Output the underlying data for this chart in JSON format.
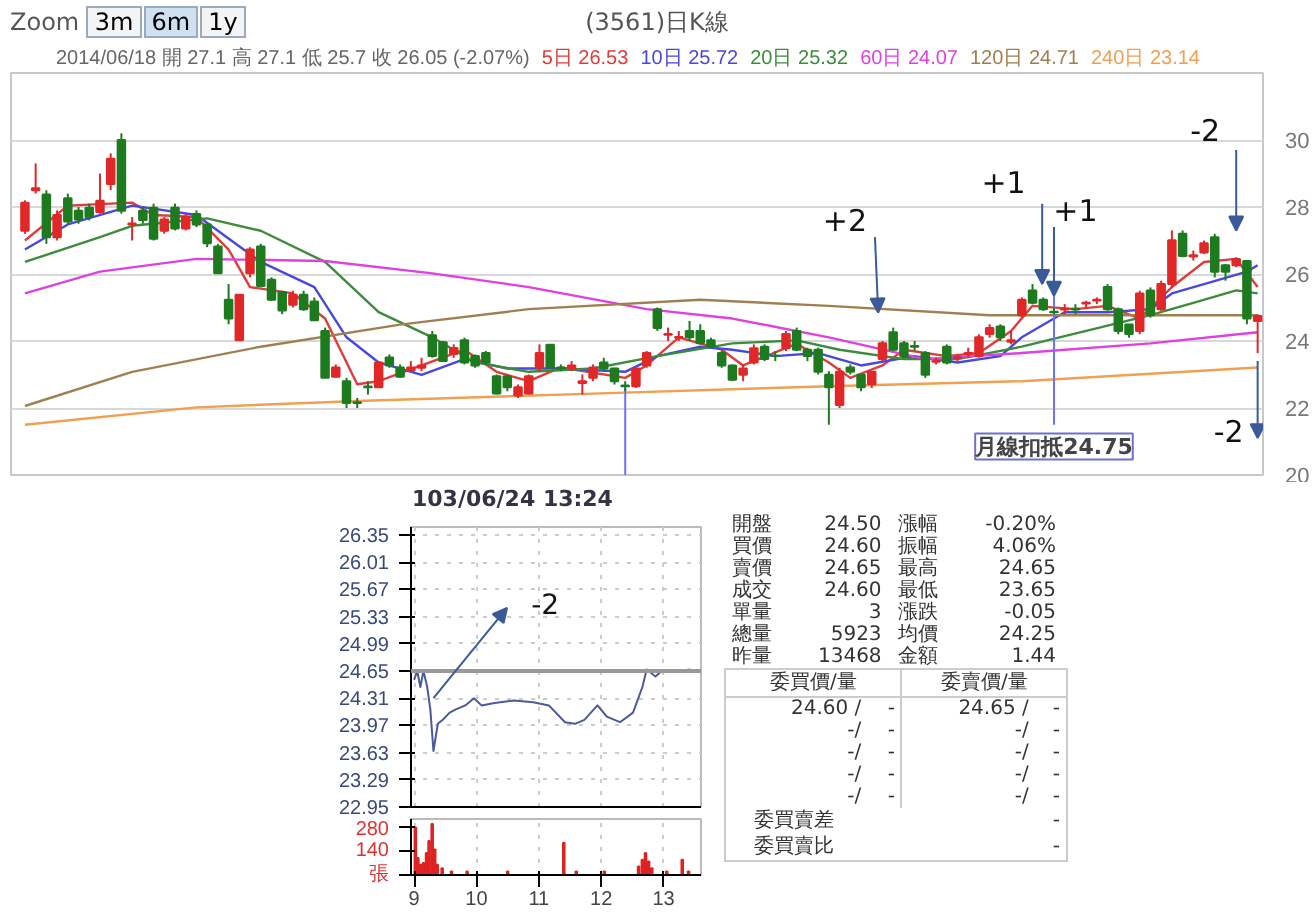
{
  "chart_data": [
    {
      "type": "candlestick",
      "title": "(3561)日K線",
      "subtitle": "2014/06/18 開 27.1 高 27.1 低 25.7 收 26.05 (-2.07%)",
      "annotations": [
        "Zoom",
        "3m",
        "6m",
        "1y",
        "+2",
        "+1",
        "+1",
        "-2",
        "-2",
        "月線扣抵24.75"
      ],
      "categories": [
        null,
        null,
        null,
        null,
        null,
        null,
        null,
        null,
        null,
        null,
        null,
        null,
        null,
        null,
        null,
        null,
        null,
        null,
        null,
        null,
        null,
        null,
        null,
        null,
        null,
        null,
        null,
        null,
        null,
        null,
        null,
        null,
        null,
        null,
        null,
        null,
        null,
        null,
        null,
        null,
        null,
        null,
        null,
        null,
        null,
        null,
        null,
        null,
        null,
        null,
        null,
        null,
        null,
        null,
        null,
        null,
        null,
        null,
        null,
        null,
        null,
        null,
        null,
        null,
        null,
        null,
        null,
        null,
        null,
        null,
        null,
        null,
        null,
        null,
        null,
        null,
        null,
        null,
        null,
        null,
        null,
        null,
        null,
        null,
        null,
        null,
        null,
        null,
        null,
        null,
        null,
        null,
        null,
        null,
        null,
        null,
        null,
        null,
        null,
        null,
        null,
        null,
        null,
        null,
        null,
        null,
        null,
        null,
        null,
        null,
        null,
        null,
        null,
        null,
        null,
        null
      ],
      "ohlc": [
        [
          27.29,
          28.2,
          27.2,
          28.13
        ],
        [
          28.5,
          29.3,
          28.4,
          28.56
        ],
        [
          28.37,
          28.5,
          26.9,
          27.1
        ],
        [
          27.1,
          27.9,
          27.0,
          27.76
        ],
        [
          28.26,
          28.4,
          27.5,
          27.57
        ],
        [
          27.89,
          28.0,
          27.5,
          27.63
        ],
        [
          27.98,
          28.1,
          27.6,
          27.7
        ],
        [
          27.85,
          29.0,
          27.8,
          28.19
        ],
        [
          28.69,
          29.6,
          28.5,
          29.44
        ],
        [
          30.0,
          30.2,
          27.8,
          27.89
        ],
        [
          27.48,
          27.7,
          27.0,
          27.51
        ],
        [
          27.89,
          28.0,
          27.5,
          27.61
        ],
        [
          27.98,
          28.1,
          27.0,
          27.05
        ],
        [
          27.29,
          27.7,
          27.2,
          27.63
        ],
        [
          27.98,
          28.1,
          27.3,
          27.36
        ],
        [
          27.36,
          27.8,
          27.3,
          27.7
        ],
        [
          27.79,
          27.9,
          27.4,
          27.48
        ],
        [
          27.48,
          27.5,
          26.8,
          26.92
        ],
        [
          26.82,
          26.9,
          26.0,
          26.02
        ],
        [
          25.23,
          25.7,
          24.5,
          24.67
        ],
        [
          24.02,
          25.4,
          24.0,
          25.38
        ],
        [
          26.02,
          26.8,
          25.9,
          26.73
        ],
        [
          26.82,
          26.9,
          25.6,
          25.64
        ],
        [
          25.83,
          25.9,
          25.2,
          25.23
        ],
        [
          25.46,
          25.5,
          24.8,
          24.91
        ],
        [
          25.08,
          25.5,
          25.0,
          25.38
        ],
        [
          25.38,
          25.5,
          24.9,
          24.95
        ],
        [
          25.18,
          25.3,
          24.6,
          24.62
        ],
        [
          24.3,
          24.4,
          22.9,
          22.9
        ],
        [
          22.93,
          23.3,
          22.9,
          23.21
        ],
        [
          22.8,
          22.9,
          22.0,
          22.15
        ],
        [
          22.17,
          22.3,
          22.0,
          22.15
        ],
        [
          22.64,
          22.8,
          22.4,
          22.62
        ],
        [
          22.62,
          23.4,
          22.6,
          23.36
        ],
        [
          23.51,
          23.6,
          23.2,
          23.27
        ],
        [
          23.21,
          23.3,
          22.9,
          22.93
        ],
        [
          23.12,
          23.4,
          23.1,
          23.21
        ],
        [
          23.2,
          23.5,
          23.1,
          23.27
        ],
        [
          24.17,
          24.3,
          23.5,
          23.55
        ],
        [
          23.96,
          24.0,
          23.4,
          23.4
        ],
        [
          23.61,
          23.9,
          23.5,
          23.79
        ],
        [
          24.02,
          24.1,
          23.3,
          23.36
        ],
        [
          23.55,
          23.6,
          23.2,
          23.27
        ],
        [
          23.64,
          23.7,
          23.3,
          23.36
        ],
        [
          22.95,
          23.0,
          22.4,
          22.43
        ],
        [
          22.95,
          23.0,
          22.5,
          22.62
        ],
        [
          22.37,
          22.7,
          22.3,
          22.62
        ],
        [
          22.43,
          23.0,
          22.4,
          22.95
        ],
        [
          23.21,
          23.9,
          23.1,
          23.64
        ],
        [
          23.89,
          23.9,
          23.2,
          23.21
        ],
        [
          23.21,
          23.3,
          23.1,
          23.18
        ],
        [
          23.18,
          23.4,
          23.1,
          23.27
        ],
        [
          22.75,
          23.0,
          22.4,
          22.8
        ],
        [
          22.9,
          23.3,
          22.8,
          23.21
        ],
        [
          23.36,
          23.5,
          23.1,
          23.18
        ],
        [
          23.18,
          23.2,
          22.7,
          22.8
        ],
        [
          22.67,
          22.8,
          22.5,
          22.65
        ],
        [
          22.65,
          23.2,
          22.6,
          23.18
        ],
        [
          23.27,
          23.7,
          23.2,
          23.64
        ],
        [
          24.95,
          25.0,
          24.3,
          24.39
        ],
        [
          24.19,
          24.4,
          24.0,
          24.21
        ],
        [
          24.1,
          24.3,
          24.0,
          24.12
        ],
        [
          24.3,
          24.6,
          24.0,
          24.11
        ],
        [
          24.3,
          24.5,
          23.9,
          23.93
        ],
        [
          24.02,
          24.1,
          23.8,
          23.83
        ],
        [
          23.64,
          23.7,
          23.2,
          23.27
        ],
        [
          23.27,
          23.3,
          22.8,
          22.84
        ],
        [
          22.99,
          23.3,
          22.8,
          23.18
        ],
        [
          23.36,
          23.9,
          23.3,
          23.78
        ],
        [
          23.83,
          23.9,
          23.4,
          23.46
        ],
        [
          23.56,
          23.7,
          23.4,
          23.55
        ],
        [
          23.78,
          24.3,
          23.7,
          24.21
        ],
        [
          24.3,
          24.4,
          23.7,
          23.74
        ],
        [
          23.74,
          23.8,
          23.4,
          23.55
        ],
        [
          23.74,
          23.8,
          23.0,
          23.08
        ],
        [
          22.99,
          23.1,
          21.5,
          22.62
        ],
        [
          22.09,
          23.2,
          22.0,
          23.08
        ],
        [
          23.21,
          23.3,
          23.0,
          23.08
        ],
        [
          22.99,
          23.0,
          22.5,
          22.62
        ],
        [
          22.71,
          23.1,
          22.6,
          23.08
        ],
        [
          23.46,
          24.0,
          23.4,
          23.93
        ],
        [
          24.26,
          24.4,
          23.7,
          23.74
        ],
        [
          23.93,
          24.0,
          23.5,
          23.55
        ],
        [
          23.85,
          24.0,
          23.7,
          23.83
        ],
        [
          23.64,
          23.7,
          22.9,
          22.99
        ],
        [
          23.38,
          23.5,
          23.3,
          23.4
        ],
        [
          23.83,
          23.9,
          23.3,
          23.36
        ],
        [
          23.5,
          23.6,
          23.4,
          23.51
        ],
        [
          23.62,
          23.8,
          23.5,
          23.64
        ],
        [
          23.55,
          24.2,
          23.5,
          24.11
        ],
        [
          24.21,
          24.5,
          24.1,
          24.39
        ],
        [
          24.43,
          24.5,
          24.0,
          24.11
        ],
        [
          23.98,
          24.3,
          23.9,
          24.02
        ],
        [
          24.77,
          25.3,
          24.7,
          25.23
        ],
        [
          25.51,
          25.7,
          25.1,
          25.14
        ],
        [
          25.23,
          25.3,
          24.9,
          24.95
        ],
        [
          24.87,
          25.0,
          24.8,
          24.86
        ],
        [
          24.94,
          25.1,
          24.8,
          24.96
        ],
        [
          24.96,
          25.1,
          24.8,
          24.94
        ],
        [
          25.12,
          25.2,
          25.0,
          25.14
        ],
        [
          25.21,
          25.3,
          25.1,
          25.23
        ],
        [
          25.61,
          25.7,
          24.9,
          24.95
        ],
        [
          24.95,
          25.0,
          24.2,
          24.3
        ],
        [
          24.49,
          24.5,
          24.1,
          24.21
        ],
        [
          24.3,
          25.5,
          24.2,
          25.42
        ],
        [
          25.51,
          25.6,
          24.7,
          24.77
        ],
        [
          24.95,
          25.8,
          24.9,
          25.7
        ],
        [
          25.7,
          27.3,
          25.6,
          27.01
        ],
        [
          27.2,
          27.3,
          26.5,
          26.54
        ],
        [
          26.52,
          26.7,
          26.4,
          26.56
        ],
        [
          26.64,
          27.0,
          26.6,
          26.92
        ],
        [
          27.1,
          27.2,
          25.9,
          26.07
        ],
        [
          26.26,
          26.3,
          25.8,
          26.07
        ],
        [
          26.26,
          26.5,
          26.2,
          26.45
        ],
        [
          26.39,
          26.4,
          24.5,
          24.67
        ],
        [
          24.6,
          24.8,
          23.64,
          24.75
        ]
      ],
      "series": [
        {
          "type": "line",
          "name": "5日 26.53",
          "color": "#e03c3c",
          "values": [
            27.0,
            null,
            null,
            null,
            28.04,
            null,
            null,
            null,
            null,
            null,
            28.13,
            null,
            27.76,
            null,
            null,
            null,
            27.7,
            null,
            null,
            26.73,
            null,
            25.61,
            null,
            null,
            null,
            25.42,
            null,
            null,
            24.67,
            null,
            null,
            22.71,
            null,
            22.8,
            null,
            null,
            null,
            23.27,
            null,
            null,
            null,
            23.74,
            null,
            null,
            23.08,
            null,
            null,
            22.8,
            null,
            null,
            23.21,
            null,
            null,
            null,
            null,
            null,
            22.9,
            null,
            23.27,
            null,
            null,
            24.11,
            null,
            null,
            null,
            23.74,
            null,
            23.27,
            null,
            null,
            null,
            null,
            23.92,
            null,
            null,
            23.36,
            null,
            22.9,
            null,
            null,
            23.27,
            null,
            23.74,
            null,
            null,
            null,
            23.55,
            null,
            null,
            23.64,
            null,
            null,
            24.3,
            null,
            25.05,
            null,
            null,
            null,
            24.95,
            null,
            null,
            25.05,
            null,
            null,
            24.67,
            null,
            null,
            25.61,
            null,
            null,
            26.36,
            null,
            null,
            26.45,
            null,
            25.61
          ]
        },
        {
          "type": "line",
          "name": "10日 25.72",
          "color": "#4848e0",
          "values": [
            26.73,
            null,
            null,
            null,
            27.48,
            null,
            null,
            null,
            null,
            null,
            28.04,
            null,
            null,
            null,
            null,
            null,
            27.76,
            null,
            27.29,
            null,
            null,
            null,
            26.36,
            null,
            null,
            null,
            null,
            25.61,
            null,
            null,
            24.11,
            null,
            null,
            23.36,
            null,
            null,
            null,
            22.99,
            null,
            null,
            null,
            23.46,
            null,
            null,
            null,
            23.18,
            null,
            null,
            null,
            null,
            23.18,
            null,
            null,
            null,
            null,
            null,
            23.08,
            null,
            null,
            23.55,
            null,
            null,
            null,
            23.83,
            null,
            null,
            23.74,
            null,
            null,
            null,
            23.55,
            null,
            null,
            null,
            23.64,
            null,
            null,
            null,
            23.27,
            null,
            null,
            null,
            null,
            23.55,
            null,
            null,
            null,
            23.36,
            null,
            null,
            null,
            23.55,
            null,
            24.11,
            null,
            null,
            null,
            24.86,
            null,
            null,
            null,
            24.86,
            null,
            null,
            null,
            24.95,
            null,
            25.42,
            null,
            null,
            25.7,
            null,
            null,
            null,
            26.07,
            26.26
          ]
        },
        {
          "type": "line",
          "name": "20日 25.32",
          "color": "#3c8c3c",
          "values": [
            26.36,
            null,
            null,
            null,
            null,
            null,
            null,
            27.1,
            null,
            null,
            27.44,
            null,
            null,
            null,
            null,
            null,
            null,
            27.66,
            null,
            null,
            null,
            null,
            27.29,
            null,
            null,
            null,
            null,
            null,
            26.36,
            null,
            null,
            null,
            null,
            24.86,
            null,
            null,
            null,
            null,
            24.11,
            null,
            null,
            null,
            23.36,
            null,
            null,
            null,
            null,
            23.08,
            null,
            null,
            null,
            null,
            null,
            23.18,
            null,
            null,
            null,
            null,
            null,
            23.55,
            null,
            null,
            null,
            null,
            null,
            null,
            23.93,
            null,
            null,
            null,
            null,
            null,
            24.02,
            null,
            null,
            null,
            23.74,
            null,
            null,
            null,
            null,
            null,
            23.46,
            null,
            null,
            null,
            null,
            23.46,
            null,
            null,
            null,
            null,
            null,
            23.83,
            null,
            null,
            null,
            null,
            null,
            24.3,
            null,
            null,
            null,
            null,
            null,
            24.77,
            null,
            null,
            null,
            25.14,
            null,
            null,
            null,
            25.51,
            null,
            25.42
          ]
        },
        {
          "type": "line",
          "name": "60日 24.07",
          "color": "#e040e0",
          "values": [
            25.42,
            null,
            null,
            null,
            null,
            null,
            null,
            26.07,
            null,
            null,
            null,
            null,
            null,
            null,
            null,
            null,
            26.45,
            null,
            null,
            null,
            null,
            null,
            null,
            null,
            null,
            null,
            null,
            null,
            26.39,
            null,
            null,
            null,
            null,
            null,
            null,
            null,
            null,
            null,
            26.02,
            null,
            null,
            null,
            null,
            null,
            null,
            null,
            null,
            25.61,
            null,
            null,
            null,
            null,
            null,
            null,
            null,
            null,
            null,
            null,
            24.95,
            null,
            null,
            null,
            null,
            null,
            null,
            null,
            24.67,
            null,
            null,
            null,
            null,
            null,
            null,
            null,
            null,
            24.11,
            null,
            null,
            null,
            null,
            null,
            null,
            null,
            null,
            23.46,
            null,
            null,
            null,
            null,
            null,
            null,
            null,
            null,
            23.64,
            null,
            null,
            null,
            null,
            null,
            null,
            null,
            null,
            null,
            null,
            null,
            23.93,
            null,
            null,
            null,
            null,
            null,
            null,
            null,
            null,
            null,
            24.26
          ]
        },
        {
          "type": "line",
          "name": "120日 24.71",
          "color": "#a08050",
          "values": [
            22.06,
            null,
            null,
            null,
            null,
            null,
            null,
            null,
            null,
            null,
            23.08,
            null,
            null,
            null,
            null,
            null,
            null,
            null,
            null,
            null,
            null,
            null,
            23.83,
            null,
            null,
            null,
            null,
            null,
            null,
            null,
            null,
            null,
            null,
            null,
            null,
            24.49,
            null,
            null,
            null,
            null,
            null,
            null,
            null,
            null,
            null,
            null,
            null,
            24.95,
            null,
            null,
            null,
            null,
            null,
            null,
            null,
            null,
            null,
            null,
            null,
            null,
            null,
            null,
            null,
            25.23,
            null,
            null,
            null,
            null,
            null,
            null,
            null,
            null,
            null,
            null,
            null,
            25.05,
            null,
            null,
            null,
            null,
            null,
            null,
            null,
            null,
            null,
            null,
            null,
            null,
            null,
            null,
            24.77,
            null,
            null,
            null,
            null,
            null,
            null,
            null,
            null,
            null,
            null,
            null,
            null,
            null,
            null,
            24.77,
            null,
            null,
            null,
            null,
            null,
            null,
            null,
            null,
            null,
            24.77
          ]
        },
        {
          "type": "line",
          "name": "240日 23.14",
          "color": "#f0a050",
          "values": [
            21.5,
            null,
            null,
            null,
            null,
            null,
            null,
            null,
            null,
            null,
            null,
            null,
            null,
            null,
            null,
            null,
            22.02,
            null,
            null,
            null,
            null,
            null,
            null,
            null,
            null,
            null,
            null,
            null,
            null,
            null,
            null,
            22.21,
            null,
            null,
            null,
            null,
            null,
            null,
            null,
            null,
            null,
            null,
            null,
            null,
            null,
            null,
            null,
            null,
            null,
            null,
            null,
            null,
            null,
            22.43,
            null,
            null,
            null,
            null,
            null,
            null,
            null,
            null,
            null,
            null,
            null,
            null,
            null,
            null,
            null,
            null,
            null,
            null,
            null,
            null,
            null,
            22.65,
            null,
            null,
            null,
            null,
            null,
            null,
            null,
            null,
            null,
            null,
            null,
            null,
            null,
            null,
            null,
            null,
            null,
            22.8,
            null,
            null,
            null,
            null,
            null,
            null,
            null,
            null,
            null,
            null,
            null,
            null,
            null,
            null,
            null,
            null,
            null,
            null,
            null,
            null,
            null,
            23.21
          ]
        }
      ],
      "ylim": [
        20,
        32
      ],
      "yticks": [
        20,
        22,
        24,
        26,
        28,
        30
      ],
      "grid": "y",
      "legend": "top"
    },
    {
      "type": "line",
      "title": "103/06/24 13:24",
      "tick_labels": "y",
      "x": [
        9.0,
        9.05,
        9.1,
        9.15,
        9.21,
        9.26,
        9.31,
        9.38,
        9.46,
        9.57,
        9.67,
        9.82,
        9.96,
        10.08,
        10.29,
        10.6,
        10.91,
        11.16,
        11.42,
        11.58,
        11.73,
        11.94,
        12.09,
        12.3,
        12.51,
        12.66,
        12.73,
        12.87,
        12.97,
        13.23,
        13.43
      ],
      "series": [
        {
          "color": "#4a5a9a",
          "values": [
            24.54,
            24.65,
            24.45,
            24.65,
            24.45,
            24.17,
            23.65,
            23.99,
            24.04,
            24.13,
            24.17,
            24.22,
            24.31,
            24.22,
            24.25,
            24.28,
            24.26,
            24.22,
            24.01,
            23.99,
            24.04,
            24.22,
            24.08,
            24.01,
            24.13,
            24.45,
            24.67,
            24.58,
            24.65,
            24.65,
            24.67
          ]
        }
      ],
      "xlim": [
        8.95,
        13.6
      ],
      "xticks": [
        9,
        10,
        11,
        12,
        13
      ],
      "ylim": [
        22.95,
        26.45
      ],
      "yticks": [
        22.95,
        23.29,
        23.63,
        23.97,
        24.31,
        24.65,
        24.99,
        25.33,
        25.67,
        26.01,
        26.35
      ],
      "grid": true,
      "ref_lines": [
        {
          "axis": "y",
          "value": 24.65,
          "color": "#999999"
        }
      ],
      "annotations": [
        "-2"
      ]
    },
    {
      "type": "bar",
      "x": [
        9.02,
        9.06,
        9.1,
        9.15,
        9.2,
        9.24,
        9.29,
        9.33,
        9.37,
        9.45,
        9.6,
        9.85,
        10.5,
        11.4,
        11.6,
        12.05,
        12.6,
        12.66,
        12.71,
        12.76,
        12.81,
        13.05,
        13.3,
        13.4
      ],
      "values": [
        280,
        100,
        60,
        70,
        130,
        200,
        300,
        150,
        60,
        40,
        20,
        20,
        20,
        190,
        20,
        20,
        50,
        90,
        130,
        80,
        40,
        20,
        90,
        20
      ],
      "color": "#dd2222",
      "xlim": [
        8.95,
        13.6
      ],
      "xticks": [
        9,
        10,
        11,
        12,
        13
      ],
      "ylim": [
        0,
        330
      ],
      "yticks": [
        {
          "value": 0,
          "label": "張"
        },
        140,
        280
      ],
      "grid": "x"
    },
    {
      "type": "other",
      "annotations": [
        "開盤",
        "24.50",
        "漲幅",
        "-0.20%",
        "買價",
        "24.60",
        "振幅",
        "4.06%",
        "賣價",
        "24.65",
        "最高",
        "24.65",
        "成交",
        "24.60",
        "最低",
        "23.65",
        "單量",
        "3",
        "漲跌",
        "-0.05",
        "總量",
        "5923",
        "均價",
        "24.25",
        "昨量",
        "13468",
        "金額",
        "1.44",
        "委買價/量",
        "委賣價/量",
        "24.60 /",
        "-",
        "24.65 /",
        "-",
        "-/",
        "-",
        "-/",
        "-",
        "-/",
        "-",
        "-/",
        "-",
        "-/",
        "-",
        "-/",
        "-",
        "-/",
        "-",
        "-/",
        "-",
        "委買賣差",
        "-",
        "委買賣比",
        "-"
      ]
    }
  ]
}
